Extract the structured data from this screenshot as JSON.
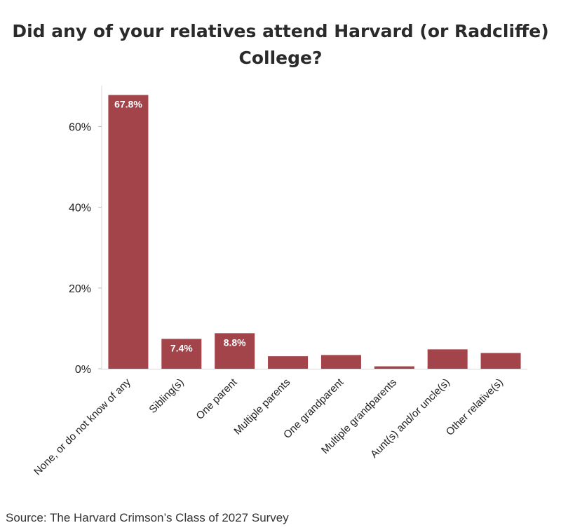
{
  "chart_data": {
    "type": "bar",
    "title_lines": [
      "Did any of your relatives attend Harvard (or Radcliffe)",
      "College?"
    ],
    "categories": [
      "None, or do not know of any",
      "Sibling(s)",
      "One parent",
      "Multiple parents",
      "One grandparent",
      "Multiple grandparents",
      "Aunt(s) and/or uncle(s)",
      "Other relative(s)"
    ],
    "values": [
      67.8,
      7.4,
      8.8,
      3.1,
      3.4,
      0.6,
      4.8,
      3.9
    ],
    "data_labels": [
      "67.8%",
      "7.4%",
      "8.8%",
      "",
      "",
      "",
      "",
      ""
    ],
    "yticks": [
      0,
      20,
      40,
      60
    ],
    "ytick_labels": [
      "0%",
      "20%",
      "40%",
      "60%"
    ],
    "ylim": [
      0,
      70
    ],
    "bar_color": "#a3434a",
    "grid": false,
    "xlabel": "",
    "ylabel": ""
  },
  "source": "Source: The Harvard Crimson’s Class of 2027 Survey"
}
